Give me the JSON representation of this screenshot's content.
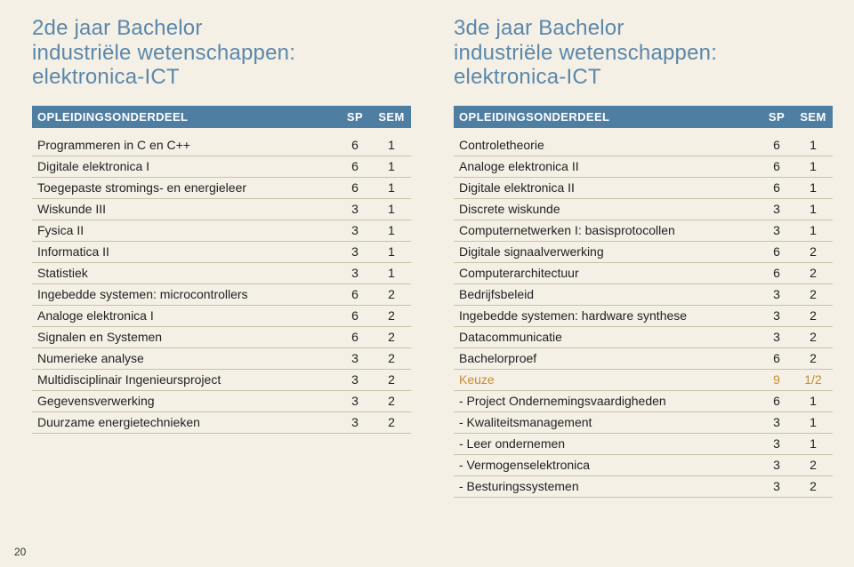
{
  "page_number": "20",
  "layout": {
    "background_color": "#f4f0e6",
    "row_border_color": "#c9c2a9",
    "text_color": "#222222",
    "header_bg_left": "#4f7ea3",
    "header_bg_right": "#4f7ea3",
    "heading_color_left": "#5b87aa",
    "heading_color_right": "#5b87aa",
    "keuze_color": "#c98b2e"
  },
  "left": {
    "title_line1": "2de jaar Bachelor",
    "title_line2": "industriële wetenschappen: elektronica-ICT",
    "header": {
      "col1": "OPLEIDINGSONDERDEEL",
      "col2": "SP",
      "col3": "SEM"
    },
    "rows": [
      {
        "name": "Programmeren in C en C++",
        "sp": "6",
        "sem": "1"
      },
      {
        "name": "Digitale elektronica I",
        "sp": "6",
        "sem": "1"
      },
      {
        "name": "Toegepaste stromings- en energieleer",
        "sp": "6",
        "sem": "1"
      },
      {
        "name": "Wiskunde III",
        "sp": "3",
        "sem": "1"
      },
      {
        "name": "Fysica II",
        "sp": "3",
        "sem": "1"
      },
      {
        "name": "Informatica II",
        "sp": "3",
        "sem": "1"
      },
      {
        "name": "Statistiek",
        "sp": "3",
        "sem": "1"
      },
      {
        "name": "Ingebedde systemen: microcontrollers",
        "sp": "6",
        "sem": "2"
      },
      {
        "name": "Analoge elektronica I",
        "sp": "6",
        "sem": "2"
      },
      {
        "name": "Signalen en Systemen",
        "sp": "6",
        "sem": "2"
      },
      {
        "name": "Numerieke analyse",
        "sp": "3",
        "sem": "2"
      },
      {
        "name": "Multidisciplinair Ingenieursproject",
        "sp": "3",
        "sem": "2"
      },
      {
        "name": "Gegevensverwerking",
        "sp": "3",
        "sem": "2"
      },
      {
        "name": "Duurzame energietechnieken",
        "sp": "3",
        "sem": "2"
      }
    ]
  },
  "right": {
    "title_line1": "3de jaar Bachelor",
    "title_line2": "industriële wetenschappen: elektronica-ICT",
    "header": {
      "col1": "OPLEIDINGSONDERDEEL",
      "col2": "SP",
      "col3": "SEM"
    },
    "rows": [
      {
        "name": "Controletheorie",
        "sp": "6",
        "sem": "1"
      },
      {
        "name": "Analoge elektronica II",
        "sp": "6",
        "sem": "1"
      },
      {
        "name": "Digitale elektronica II",
        "sp": "6",
        "sem": "1"
      },
      {
        "name": "Discrete wiskunde",
        "sp": "3",
        "sem": "1"
      },
      {
        "name": "Computernetwerken I: basisprotocollen",
        "sp": "3",
        "sem": "1"
      },
      {
        "name": "Digitale signaalverwerking",
        "sp": "6",
        "sem": "2"
      },
      {
        "name": "Computerarchitectuur",
        "sp": "6",
        "sem": "2"
      },
      {
        "name": "Bedrijfsbeleid",
        "sp": "3",
        "sem": "2"
      },
      {
        "name": "Ingebedde systemen: hardware synthese",
        "sp": "3",
        "sem": "2"
      },
      {
        "name": "Datacommunicatie",
        "sp": "3",
        "sem": "2"
      },
      {
        "name": "Bachelorproef",
        "sp": "6",
        "sem": "2"
      },
      {
        "name": "Keuze",
        "sp": "9",
        "sem": "1/2",
        "keuze": true
      },
      {
        "name": "- Project Ondernemingsvaardigheden",
        "sp": "6",
        "sem": "1"
      },
      {
        "name": "- Kwaliteitsmanagement",
        "sp": "3",
        "sem": "1"
      },
      {
        "name": "- Leer ondernemen",
        "sp": "3",
        "sem": "1"
      },
      {
        "name": "- Vermogenselektronica",
        "sp": "3",
        "sem": "2"
      },
      {
        "name": "- Besturingssystemen",
        "sp": "3",
        "sem": "2"
      }
    ]
  }
}
